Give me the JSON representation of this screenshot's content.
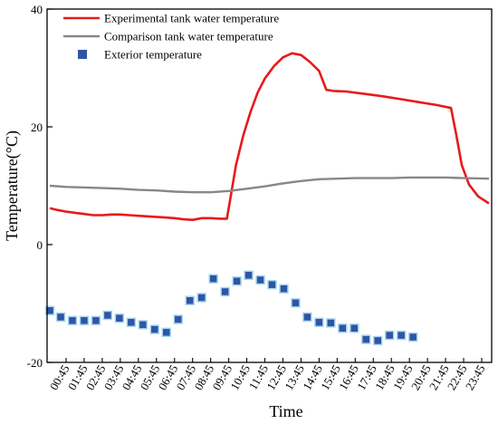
{
  "chart_data": {
    "type": "line",
    "xlabel": "Time",
    "ylabel": "Temperature(°C)",
    "ylim": [
      -20,
      40
    ],
    "yticks": [
      -20,
      0,
      20,
      40
    ],
    "grid": false,
    "legend_position": "top-left",
    "categories": [
      "00:45",
      "01:45",
      "02:45",
      "03:45",
      "04:45",
      "05:45",
      "06:45",
      "07:45",
      "08:45",
      "09:45",
      "10:45",
      "11:45",
      "12:45",
      "13:45",
      "14:45",
      "15:45",
      "16:45",
      "17:45",
      "18:45",
      "19:45",
      "20:45",
      "21:45",
      "22:45",
      "23:45"
    ],
    "series": [
      {
        "name": "Experimental tank water temperature",
        "kind": "line",
        "color": "#e8191c",
        "points": [
          [
            -0.9,
            6.2
          ],
          [
            -0.5,
            5.9
          ],
          [
            0,
            5.6
          ],
          [
            0.5,
            5.4
          ],
          [
            1,
            5.2
          ],
          [
            1.5,
            5.0
          ],
          [
            2,
            5.0
          ],
          [
            2.5,
            5.1
          ],
          [
            3,
            5.1
          ],
          [
            3.5,
            5.0
          ],
          [
            4,
            4.9
          ],
          [
            4.5,
            4.8
          ],
          [
            5,
            4.7
          ],
          [
            5.5,
            4.6
          ],
          [
            6,
            4.5
          ],
          [
            6.5,
            4.3
          ],
          [
            7,
            4.2
          ],
          [
            7.5,
            4.5
          ],
          [
            8,
            4.5
          ],
          [
            8.5,
            4.4
          ],
          [
            8.9,
            4.4
          ],
          [
            9.1,
            8.0
          ],
          [
            9.4,
            13.5
          ],
          [
            9.8,
            18.5
          ],
          [
            10.2,
            22.5
          ],
          [
            10.6,
            25.8
          ],
          [
            11,
            28.2
          ],
          [
            11.5,
            30.3
          ],
          [
            12,
            31.8
          ],
          [
            12.5,
            32.5
          ],
          [
            13,
            32.2
          ],
          [
            13.5,
            31.0
          ],
          [
            14,
            29.5
          ],
          [
            14.4,
            26.3
          ],
          [
            14.8,
            26.1
          ],
          [
            15.5,
            26.0
          ],
          [
            16.5,
            25.6
          ],
          [
            17.5,
            25.2
          ],
          [
            18.5,
            24.7
          ],
          [
            19.5,
            24.2
          ],
          [
            20.5,
            23.7
          ],
          [
            21.3,
            23.2
          ],
          [
            21.6,
            18.5
          ],
          [
            21.9,
            13.5
          ],
          [
            22.3,
            10.2
          ],
          [
            22.8,
            8.2
          ],
          [
            23.4,
            7.0
          ]
        ]
      },
      {
        "name": "Comparison tank water temperature",
        "kind": "line",
        "color": "#878787",
        "points": [
          [
            -0.9,
            10.0
          ],
          [
            0,
            9.8
          ],
          [
            1,
            9.7
          ],
          [
            2,
            9.6
          ],
          [
            3,
            9.5
          ],
          [
            4,
            9.3
          ],
          [
            5,
            9.2
          ],
          [
            6,
            9.0
          ],
          [
            7,
            8.9
          ],
          [
            8,
            8.9
          ],
          [
            9,
            9.1
          ],
          [
            10,
            9.5
          ],
          [
            11,
            9.9
          ],
          [
            12,
            10.4
          ],
          [
            13,
            10.8
          ],
          [
            14,
            11.1
          ],
          [
            15,
            11.2
          ],
          [
            16,
            11.3
          ],
          [
            17,
            11.3
          ],
          [
            18,
            11.3
          ],
          [
            19,
            11.4
          ],
          [
            20,
            11.4
          ],
          [
            21,
            11.4
          ],
          [
            22,
            11.3
          ],
          [
            23.4,
            11.2
          ]
        ]
      },
      {
        "name": "Exterior temperature",
        "kind": "scatter",
        "color": "#2e55a6",
        "points": [
          [
            -0.9,
            -11.2
          ],
          [
            -0.3,
            -12.3
          ],
          [
            0.35,
            -12.9
          ],
          [
            1,
            -12.9
          ],
          [
            1.65,
            -12.9
          ],
          [
            2.3,
            -12.0
          ],
          [
            2.95,
            -12.5
          ],
          [
            3.6,
            -13.2
          ],
          [
            4.25,
            -13.6
          ],
          [
            4.9,
            -14.4
          ],
          [
            5.55,
            -14.9
          ],
          [
            6.2,
            -12.7
          ],
          [
            6.85,
            -9.5
          ],
          [
            7.5,
            -9.0
          ],
          [
            8.15,
            -5.8
          ],
          [
            8.8,
            -8.0
          ],
          [
            9.45,
            -6.2
          ],
          [
            10.1,
            -5.2
          ],
          [
            10.75,
            -6.0
          ],
          [
            11.4,
            -6.8
          ],
          [
            12.05,
            -7.5
          ],
          [
            12.7,
            -9.9
          ],
          [
            13.35,
            -12.3
          ],
          [
            14,
            -13.2
          ],
          [
            14.65,
            -13.3
          ],
          [
            15.3,
            -14.2
          ],
          [
            15.95,
            -14.2
          ],
          [
            16.6,
            -16.1
          ],
          [
            17.25,
            -16.3
          ],
          [
            17.9,
            -15.4
          ],
          [
            18.55,
            -15.4
          ],
          [
            19.2,
            -15.7
          ]
        ]
      }
    ]
  }
}
